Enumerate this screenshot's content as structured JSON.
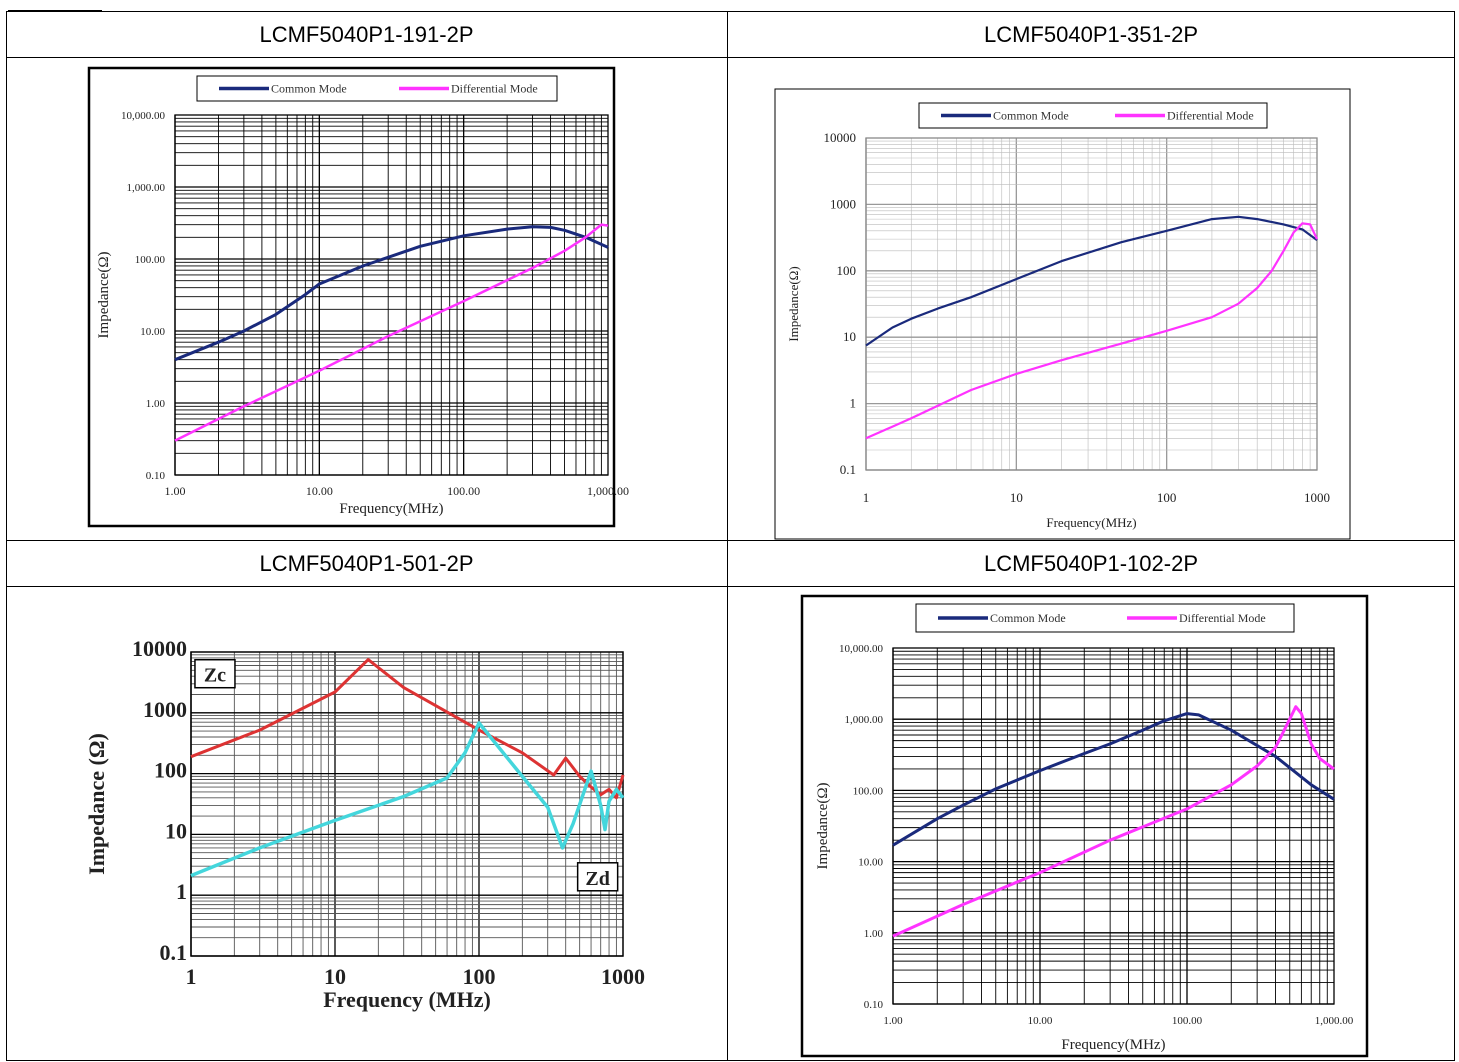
{
  "cells": [
    {
      "title": "LCMF5040P1-191-2P"
    },
    {
      "title": "LCMF5040P1-351-2P"
    },
    {
      "title": "LCMF5040P1-501-2P"
    },
    {
      "title": "LCMF5040P1-102-2P"
    }
  ],
  "colors": {
    "common_mode": "#1a2a7c",
    "differential_mode": "#ff33ff",
    "zc": "#dd3333",
    "zd": "#44d6dc"
  },
  "chart_data": [
    {
      "type": "line",
      "log_x": true,
      "log_y": true,
      "xlim": [
        1,
        1000
      ],
      "ylim": [
        0.1,
        10000
      ],
      "xticks": [
        "1.00",
        "10.00",
        "100.00",
        "1,000.00"
      ],
      "yticks": [
        "0.10",
        "1.00",
        "10.00",
        "100.00",
        "1,000.00",
        "10,000.00"
      ],
      "xlabel": "Frequency(MHz)",
      "ylabel": "Impedance(Ω)",
      "legend": [
        "Common Mode",
        "Differential Mode"
      ],
      "legend_position": "top",
      "series": [
        {
          "name": "Common Mode",
          "x": [
            1,
            2,
            3,
            5,
            8,
            10,
            20,
            50,
            100,
            200,
            300,
            400,
            500,
            700,
            1000
          ],
          "y": [
            4,
            7,
            10,
            17,
            32,
            45,
            80,
            150,
            210,
            260,
            280,
            275,
            250,
            200,
            145
          ]
        },
        {
          "name": "Differential Mode",
          "x": [
            1,
            3,
            10,
            30,
            100,
            300,
            500,
            700,
            900,
            1000
          ],
          "y": [
            0.3,
            0.9,
            2.8,
            8.5,
            26,
            75,
            130,
            200,
            300,
            290
          ]
        }
      ]
    },
    {
      "type": "line",
      "log_x": true,
      "log_y": true,
      "xlim": [
        1,
        1000
      ],
      "ylim": [
        0.1,
        10000
      ],
      "xticks": [
        "1",
        "10",
        "100",
        "1000"
      ],
      "yticks": [
        "0.1",
        "1",
        "10",
        "100",
        "1000",
        "10000"
      ],
      "xlabel": "Frequency(MHz)",
      "ylabel": "Impedance(Ω)",
      "legend": [
        "Common Mode",
        "Differential Mode"
      ],
      "legend_position": "top",
      "series": [
        {
          "name": "Common Mode",
          "x": [
            1,
            1.5,
            2,
            3,
            5,
            10,
            20,
            50,
            100,
            200,
            300,
            400,
            600,
            800,
            1000
          ],
          "y": [
            7.5,
            14,
            19,
            27,
            40,
            75,
            140,
            270,
            400,
            600,
            650,
            600,
            500,
            420,
            290
          ]
        },
        {
          "name": "Differential Mode",
          "x": [
            1,
            2,
            5,
            10,
            20,
            50,
            100,
            200,
            300,
            400,
            500,
            600,
            700,
            800,
            900,
            1000
          ],
          "y": [
            0.3,
            0.6,
            1.6,
            2.8,
            4.5,
            8,
            12.5,
            20,
            32,
            55,
            100,
            200,
            380,
            520,
            500,
            300
          ]
        }
      ]
    },
    {
      "type": "line",
      "log_x": true,
      "log_y": true,
      "xlim": [
        1,
        1000
      ],
      "ylim": [
        0.1,
        10000
      ],
      "xticks": [
        "1",
        "10",
        "100",
        "1000"
      ],
      "yticks": [
        "0.1",
        "1",
        "10",
        "100",
        "1000",
        "10000"
      ],
      "xlabel": "Frequency (MHz)",
      "ylabel": "Impedance (Ω)",
      "annotations": [
        "Zc",
        "Zd"
      ],
      "series": [
        {
          "name": "Zc",
          "x": [
            1,
            3,
            10,
            17,
            30,
            100,
            200,
            330,
            400,
            500,
            600,
            700,
            800,
            900,
            1000
          ],
          "y": [
            190,
            520,
            2200,
            7500,
            2600,
            520,
            220,
            95,
            180,
            90,
            60,
            45,
            55,
            40,
            95
          ]
        },
        {
          "name": "Zd",
          "x": [
            1,
            3,
            10,
            30,
            60,
            80,
            100,
            120,
            200,
            300,
            380,
            450,
            600,
            700,
            750,
            800,
            900,
            1000
          ],
          "y": [
            2.1,
            6,
            17,
            42,
            85,
            220,
            680,
            400,
            90,
            28,
            6,
            15,
            110,
            30,
            12,
            35,
            55,
            40
          ]
        }
      ]
    },
    {
      "type": "line",
      "log_x": true,
      "log_y": true,
      "xlim": [
        1,
        1000
      ],
      "ylim": [
        0.1,
        10000
      ],
      "xticks": [
        "1.00",
        "10.00",
        "100.00",
        "1,000.00"
      ],
      "yticks": [
        "0.10",
        "1.00",
        "10.00",
        "100.00",
        "1,000.00",
        "10,000.00"
      ],
      "xlabel": "Frequency(MHz)",
      "ylabel": "Impedance(Ω)",
      "legend": [
        "Common Mode",
        "Differential Mode"
      ],
      "legend_position": "top",
      "series": [
        {
          "name": "Common Mode",
          "x": [
            1,
            2,
            3,
            5,
            10,
            20,
            30,
            50,
            70,
            100,
            120,
            200,
            400,
            700,
            1000
          ],
          "y": [
            17,
            40,
            62,
            105,
            190,
            330,
            450,
            700,
            950,
            1200,
            1150,
            700,
            300,
            120,
            75
          ]
        },
        {
          "name": "Differential Mode",
          "x": [
            1,
            3,
            10,
            30,
            100,
            200,
            300,
            400,
            500,
            550,
            600,
            700,
            800,
            1000
          ],
          "y": [
            0.9,
            2.5,
            7,
            20,
            55,
            120,
            220,
            400,
            1000,
            1500,
            1200,
            450,
            280,
            200
          ]
        }
      ]
    }
  ]
}
